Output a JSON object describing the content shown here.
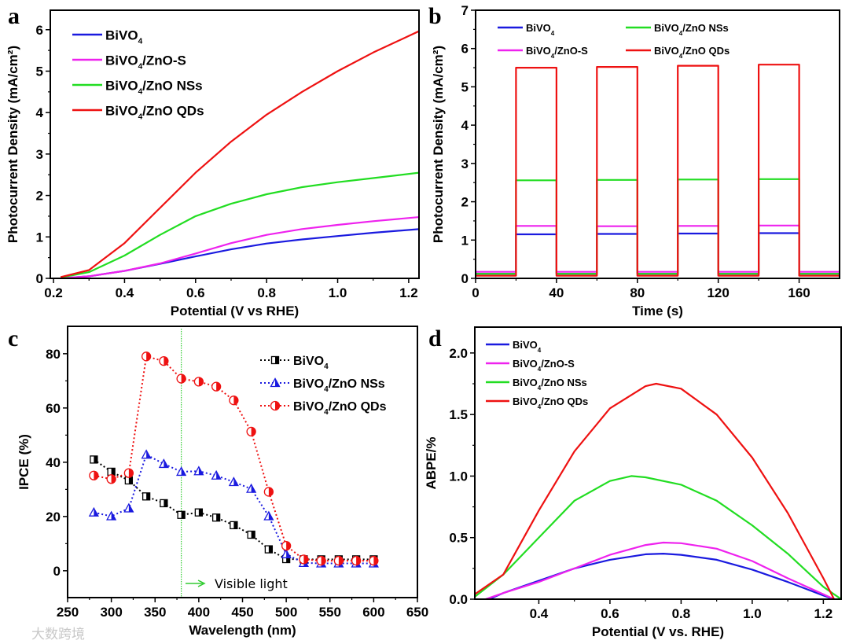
{
  "watermark": "大数跨境",
  "chart_data": [
    {
      "panel": "a",
      "type": "line",
      "xlabel": "Potential (V vs RHE)",
      "ylabel": "Photocurrent Density (mA/cm²)",
      "xlim": [
        0.191,
        1.229
      ],
      "ylim": [
        0,
        6.47
      ],
      "xticks": [
        0.2,
        0.4,
        0.6,
        0.8,
        1.0,
        1.2
      ],
      "xtick_labels": [
        "0.2",
        "0.4",
        "0.6",
        "0.8",
        "1.0",
        "1.2"
      ],
      "yticks": [
        0,
        1,
        2,
        3,
        4,
        5,
        6
      ],
      "ytick_labels": [
        "0",
        "1",
        "2",
        "3",
        "4",
        "5",
        "6"
      ],
      "legend": "top-left",
      "series": [
        {
          "name": "BiVO4",
          "color": "#1a1adf",
          "x": [
            0.22,
            0.3,
            0.4,
            0.5,
            0.6,
            0.7,
            0.8,
            0.9,
            1.0,
            1.1,
            1.23
          ],
          "y": [
            0.0,
            0.05,
            0.18,
            0.35,
            0.53,
            0.7,
            0.84,
            0.94,
            1.02,
            1.1,
            1.19
          ]
        },
        {
          "name": "BiVO4/ZnO-S",
          "color": "#ee22ee",
          "x": [
            0.22,
            0.3,
            0.4,
            0.5,
            0.6,
            0.7,
            0.8,
            0.9,
            1.0,
            1.1,
            1.23
          ],
          "y": [
            0.0,
            0.05,
            0.18,
            0.36,
            0.6,
            0.85,
            1.05,
            1.19,
            1.29,
            1.38,
            1.48
          ]
        },
        {
          "name": "BiVO4/ZnO NSs",
          "color": "#22dd22",
          "x": [
            0.22,
            0.3,
            0.4,
            0.5,
            0.6,
            0.7,
            0.8,
            0.9,
            1.0,
            1.1,
            1.23
          ],
          "y": [
            0.02,
            0.15,
            0.55,
            1.05,
            1.5,
            1.8,
            2.03,
            2.2,
            2.32,
            2.42,
            2.55
          ]
        },
        {
          "name": "BiVO4/ZnO QDs",
          "color": "#ee1111",
          "x": [
            0.22,
            0.3,
            0.4,
            0.5,
            0.6,
            0.7,
            0.8,
            0.9,
            1.0,
            1.1,
            1.23
          ],
          "y": [
            0.03,
            0.2,
            0.85,
            1.7,
            2.55,
            3.3,
            3.95,
            4.5,
            5.0,
            5.45,
            5.97
          ]
        }
      ]
    },
    {
      "panel": "b",
      "type": "line",
      "xlabel": "Time (s)",
      "ylabel": "Photocurrent Density (mA/cm²)",
      "xlim": [
        0,
        180
      ],
      "ylim": [
        0,
        7
      ],
      "xticks": [
        0,
        40,
        80,
        120,
        160
      ],
      "xtick_labels": [
        "0",
        "40",
        "80",
        "120",
        "160"
      ],
      "yticks": [
        0,
        1,
        2,
        3,
        4,
        5,
        6,
        7
      ],
      "ytick_labels": [
        "0",
        "1",
        "2",
        "3",
        "4",
        "5",
        "6",
        "7"
      ],
      "legend": "top, two columns",
      "light_on_intervals": [
        [
          20,
          40
        ],
        [
          60,
          80
        ],
        [
          100,
          120
        ],
        [
          140,
          160
        ]
      ],
      "series": [
        {
          "name": "BiVO4",
          "color": "#1a1adf",
          "off": 0.12,
          "on": [
            1.15,
            1.16,
            1.17,
            1.18
          ]
        },
        {
          "name": "BiVO4/ZnO-S",
          "color": "#ee22ee",
          "off": 0.17,
          "on": [
            1.37,
            1.36,
            1.37,
            1.38
          ]
        },
        {
          "name": "BiVO4/ZnO NSs",
          "color": "#22dd22",
          "off": 0.12,
          "on": [
            2.56,
            2.57,
            2.58,
            2.59
          ]
        },
        {
          "name": "BiVO4/ZnO QDs",
          "color": "#ee1111",
          "off": 0.07,
          "on": [
            5.5,
            5.52,
            5.55,
            5.58
          ]
        }
      ]
    },
    {
      "panel": "c",
      "type": "scatter",
      "xlabel": "Wavelength (nm)",
      "ylabel": "IPCE (%)",
      "xlim": [
        250,
        650
      ],
      "ylim": [
        -9.9,
        90.1
      ],
      "xticks": [
        250,
        300,
        350,
        400,
        450,
        500,
        550,
        600,
        650
      ],
      "xtick_labels": [
        "250",
        "300",
        "350",
        "400",
        "450",
        "500",
        "550",
        "600",
        "650"
      ],
      "yticks": [
        0,
        20,
        40,
        60,
        80
      ],
      "ytick_labels": [
        "0",
        "20",
        "40",
        "60",
        "80"
      ],
      "legend": "top-right",
      "annotation": {
        "text": "Visible light",
        "line_x": 380,
        "color": "#33cc33"
      },
      "x": [
        280,
        300,
        320,
        340,
        360,
        380,
        400,
        420,
        440,
        460,
        480,
        500,
        520,
        540,
        560,
        580,
        600
      ],
      "series": [
        {
          "name": "BiVO4",
          "color": "#000000",
          "marker": "square",
          "y": [
            41,
            36.5,
            33.3,
            27.4,
            24.9,
            20.6,
            21.5,
            19.6,
            16.8,
            13.3,
            7.9,
            4.3,
            4.2,
            4.2,
            4.2,
            4.2,
            4.2
          ]
        },
        {
          "name": "BiVO4/ZnO NSs",
          "color": "#1a1adf",
          "marker": "triangle",
          "y": [
            21.5,
            20.1,
            23,
            42.8,
            39.4,
            36.5,
            36.7,
            35.1,
            32.7,
            30.2,
            20.1,
            6.1,
            2.9,
            2.7,
            2.7,
            2.7,
            2.7
          ]
        },
        {
          "name": "BiVO4/ZnO QDs",
          "color": "#ee1111",
          "marker": "circle",
          "y": [
            35.1,
            33.8,
            36,
            79,
            77.3,
            70.8,
            69.7,
            67.9,
            62.8,
            51.3,
            29.1,
            9.2,
            4.2,
            3.7,
            3.7,
            3.7,
            3.7
          ]
        }
      ]
    },
    {
      "panel": "d",
      "type": "line",
      "xlabel": "Potential (V vs. RHE)",
      "ylabel": "ABPE/%",
      "xlim": [
        0.22,
        1.25
      ],
      "ylim": [
        0,
        2.21
      ],
      "xticks": [
        0.4,
        0.6,
        0.8,
        1.0,
        1.2
      ],
      "xtick_labels": [
        "0.4",
        "0.6",
        "0.8",
        "1.0",
        "1.2"
      ],
      "yticks": [
        0,
        0.5,
        1.0,
        1.5,
        2.0
      ],
      "ytick_labels": [
        "0.0",
        "0.5",
        "1.0",
        "1.5",
        "2.0"
      ],
      "legend": "top-left",
      "series": [
        {
          "name": "BiVO4",
          "color": "#1a1adf",
          "x": [
            0.26,
            0.3,
            0.4,
            0.5,
            0.6,
            0.7,
            0.75,
            0.8,
            0.9,
            1.0,
            1.1,
            1.2,
            1.23
          ],
          "y": [
            0,
            0.05,
            0.15,
            0.25,
            0.32,
            0.365,
            0.37,
            0.36,
            0.32,
            0.24,
            0.14,
            0.03,
            0
          ]
        },
        {
          "name": "BiVO4/ZnO-S",
          "color": "#ee22ee",
          "x": [
            0.25,
            0.3,
            0.4,
            0.5,
            0.6,
            0.7,
            0.75,
            0.8,
            0.9,
            1.0,
            1.1,
            1.2,
            1.23
          ],
          "y": [
            0,
            0.05,
            0.14,
            0.25,
            0.36,
            0.44,
            0.46,
            0.455,
            0.41,
            0.31,
            0.17,
            0.04,
            0
          ]
        },
        {
          "name": "BiVO4/ZnO NSs",
          "color": "#22dd22",
          "x": [
            0.22,
            0.3,
            0.4,
            0.5,
            0.6,
            0.66,
            0.7,
            0.8,
            0.9,
            1.0,
            1.1,
            1.2,
            1.25
          ],
          "y": [
            0.02,
            0.2,
            0.5,
            0.8,
            0.96,
            1.0,
            0.99,
            0.93,
            0.8,
            0.6,
            0.37,
            0.1,
            0
          ]
        },
        {
          "name": "BiVO4/ZnO QDs",
          "color": "#ee1111",
          "x": [
            0.22,
            0.3,
            0.4,
            0.5,
            0.6,
            0.7,
            0.73,
            0.8,
            0.9,
            1.0,
            1.1,
            1.2,
            1.23
          ],
          "y": [
            0.04,
            0.2,
            0.72,
            1.2,
            1.55,
            1.73,
            1.75,
            1.71,
            1.5,
            1.15,
            0.7,
            0.17,
            0
          ]
        }
      ]
    }
  ]
}
